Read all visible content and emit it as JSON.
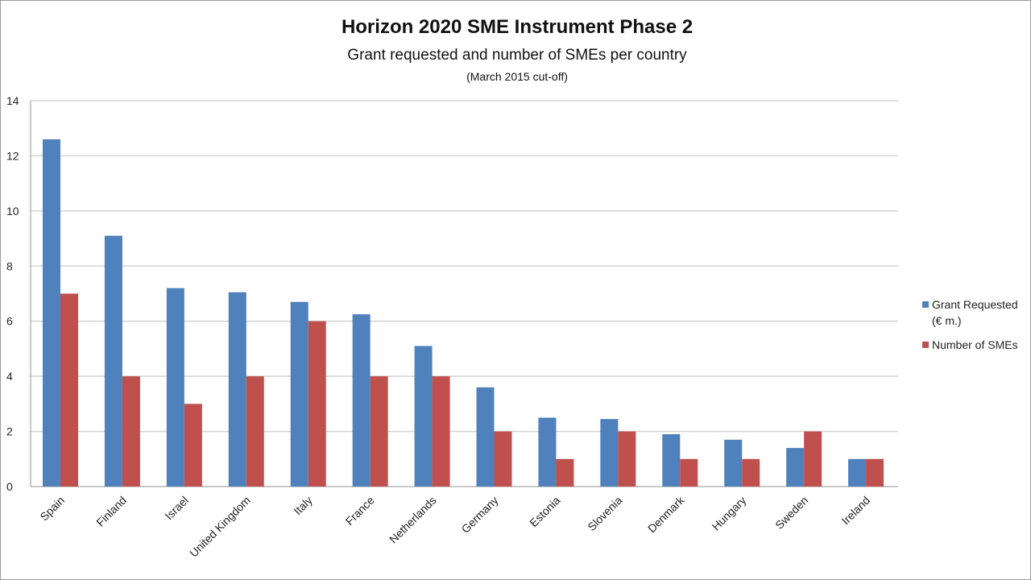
{
  "chart_data": {
    "type": "bar",
    "title": "Horizon 2020 SME Instrument Phase 2",
    "subtitle": "Grant requested and number of SMEs per country",
    "subsubtitle": "(March 2015 cut-off)",
    "categories": [
      "Spain",
      "Finland",
      "Israel",
      "United Kingdom",
      "Italy",
      "France",
      "Netherlands",
      "Germany",
      "Estonia",
      "Slovenia",
      "Denmark",
      "Hungary",
      "Sweden",
      "Ireland"
    ],
    "series": [
      {
        "name_lines": [
          "Grant Requested",
          "(€ m.)"
        ],
        "color": "#4f81bd",
        "values": [
          12.6,
          9.1,
          7.2,
          7.05,
          6.7,
          6.25,
          5.1,
          3.6,
          2.5,
          2.45,
          1.9,
          1.7,
          1.4,
          1.0
        ]
      },
      {
        "name_lines": [
          "Number of SMEs"
        ],
        "color": "#c0504d",
        "values": [
          7,
          4,
          3,
          4,
          6,
          4,
          4,
          2,
          1,
          2,
          1,
          1,
          2,
          1
        ]
      }
    ],
    "ylim": [
      0,
      14
    ],
    "yticks": [
      0,
      2,
      4,
      6,
      8,
      10,
      12,
      14
    ],
    "grid": true,
    "legend_position": "right"
  }
}
